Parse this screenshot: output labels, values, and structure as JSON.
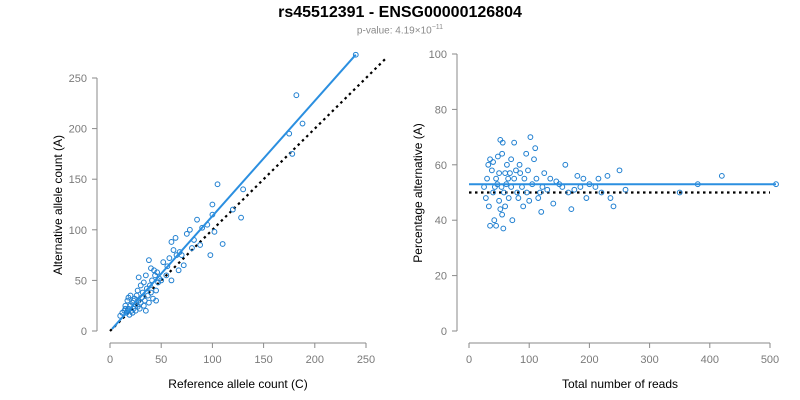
{
  "title": "rs45512391 - ENSG00000126804",
  "subtitle": {
    "prefix": "p-value: 4.19×10",
    "exponent": "−11"
  },
  "colors": {
    "points": "#1f7fd0",
    "fit_line": "#2b8fe0",
    "reference_line": "#000000",
    "axis": "#8a8a8a"
  },
  "chart_data": [
    {
      "type": "scatter",
      "title": "",
      "xlabel": "Reference allele count (C)",
      "ylabel": "Alternative allele count (A)",
      "xlim": [
        0,
        250
      ],
      "ylim": [
        0,
        250
      ],
      "xticks": [
        0,
        50,
        100,
        150,
        200,
        250
      ],
      "yticks": [
        0,
        50,
        100,
        150,
        200,
        250
      ],
      "fit_line": {
        "from": [
          2,
          2
        ],
        "to": [
          240,
          273
        ]
      },
      "reference_line": {
        "from": [
          0,
          0
        ],
        "to": [
          270,
          270
        ]
      },
      "points": [
        [
          10,
          15
        ],
        [
          12,
          18
        ],
        [
          14,
          20
        ],
        [
          15,
          22
        ],
        [
          15,
          25
        ],
        [
          16,
          18
        ],
        [
          17,
          20
        ],
        [
          17,
          30
        ],
        [
          18,
          22
        ],
        [
          18,
          33
        ],
        [
          19,
          16
        ],
        [
          20,
          25
        ],
        [
          20,
          35
        ],
        [
          21,
          20
        ],
        [
          22,
          28
        ],
        [
          22,
          18
        ],
        [
          23,
          30
        ],
        [
          23,
          22
        ],
        [
          24,
          32
        ],
        [
          25,
          26
        ],
        [
          25,
          20
        ],
        [
          26,
          35
        ],
        [
          27,
          40
        ],
        [
          27,
          24
        ],
        [
          28,
          30
        ],
        [
          28,
          53
        ],
        [
          29,
          22
        ],
        [
          30,
          45
        ],
        [
          30,
          28
        ],
        [
          31,
          33
        ],
        [
          32,
          38
        ],
        [
          33,
          25
        ],
        [
          33,
          48
        ],
        [
          34,
          30
        ],
        [
          35,
          55
        ],
        [
          35,
          20
        ],
        [
          36,
          42
        ],
        [
          37,
          35
        ],
        [
          38,
          70
        ],
        [
          38,
          28
        ],
        [
          39,
          45
        ],
        [
          40,
          38
        ],
        [
          40,
          62
        ],
        [
          41,
          50
        ],
        [
          42,
          32
        ],
        [
          43,
          60
        ],
        [
          44,
          55
        ],
        [
          45,
          40
        ],
        [
          45,
          30
        ],
        [
          46,
          58
        ],
        [
          47,
          48
        ],
        [
          48,
          52
        ],
        [
          50,
          50
        ],
        [
          52,
          68
        ],
        [
          55,
          55
        ],
        [
          56,
          64
        ],
        [
          58,
          72
        ],
        [
          60,
          50
        ],
        [
          60,
          88
        ],
        [
          62,
          80
        ],
        [
          64,
          92
        ],
        [
          65,
          75
        ],
        [
          67,
          60
        ],
        [
          68,
          78
        ],
        [
          70,
          75
        ],
        [
          72,
          65
        ],
        [
          75,
          96
        ],
        [
          78,
          100
        ],
        [
          80,
          82
        ],
        [
          82,
          90
        ],
        [
          85,
          110
        ],
        [
          88,
          85
        ],
        [
          90,
          102
        ],
        [
          95,
          105
        ],
        [
          98,
          75
        ],
        [
          100,
          125
        ],
        [
          100,
          115
        ],
        [
          102,
          98
        ],
        [
          105,
          145
        ],
        [
          110,
          86
        ],
        [
          120,
          120
        ],
        [
          128,
          112
        ],
        [
          130,
          140
        ],
        [
          175,
          195
        ],
        [
          178,
          175
        ],
        [
          182,
          233
        ],
        [
          188,
          205
        ],
        [
          240,
          273
        ]
      ]
    },
    {
      "type": "scatter",
      "title": "",
      "xlabel": "Total number of reads",
      "ylabel": "Percentage alternative (A)",
      "xlim": [
        0,
        500
      ],
      "ylim": [
        0,
        100
      ],
      "xticks": [
        0,
        100,
        200,
        300,
        400,
        500
      ],
      "yticks": [
        0,
        20,
        40,
        60,
        80,
        100
      ],
      "fit_line": {
        "from": [
          0,
          53
        ],
        "to": [
          510,
          53
        ]
      },
      "reference_line": {
        "from": [
          0,
          50
        ],
        "to": [
          500,
          50
        ]
      },
      "points": [
        [
          25,
          52
        ],
        [
          28,
          48
        ],
        [
          30,
          55
        ],
        [
          32,
          60
        ],
        [
          33,
          45
        ],
        [
          35,
          62
        ],
        [
          35,
          38
        ],
        [
          38,
          58
        ],
        [
          40,
          50
        ],
        [
          40,
          61
        ],
        [
          42,
          40
        ],
        [
          43,
          52
        ],
        [
          45,
          55
        ],
        [
          45,
          38
        ],
        [
          47,
          53
        ],
        [
          48,
          63
        ],
        [
          50,
          57
        ],
        [
          50,
          47
        ],
        [
          52,
          69
        ],
        [
          52,
          44
        ],
        [
          54,
          52
        ],
        [
          55,
          42
        ],
        [
          55,
          64
        ],
        [
          56,
          68
        ],
        [
          57,
          37
        ],
        [
          58,
          50
        ],
        [
          60,
          57
        ],
        [
          60,
          45
        ],
        [
          62,
          53
        ],
        [
          63,
          60
        ],
        [
          65,
          55
        ],
        [
          66,
          48
        ],
        [
          68,
          57
        ],
        [
          70,
          62
        ],
        [
          70,
          52
        ],
        [
          72,
          40
        ],
        [
          75,
          68
        ],
        [
          75,
          55
        ],
        [
          78,
          58
        ],
        [
          80,
          50
        ],
        [
          82,
          48
        ],
        [
          84,
          60
        ],
        [
          85,
          57
        ],
        [
          88,
          52
        ],
        [
          90,
          45
        ],
        [
          92,
          55
        ],
        [
          95,
          64
        ],
        [
          96,
          50
        ],
        [
          98,
          58
        ],
        [
          100,
          47
        ],
        [
          102,
          70
        ],
        [
          105,
          53
        ],
        [
          108,
          62
        ],
        [
          110,
          66
        ],
        [
          112,
          55
        ],
        [
          115,
          48
        ],
        [
          118,
          50
        ],
        [
          120,
          43
        ],
        [
          122,
          52
        ],
        [
          125,
          57
        ],
        [
          130,
          51
        ],
        [
          135,
          55
        ],
        [
          140,
          46
        ],
        [
          145,
          54
        ],
        [
          150,
          53
        ],
        [
          155,
          52
        ],
        [
          160,
          60
        ],
        [
          165,
          50
        ],
        [
          170,
          44
        ],
        [
          175,
          51
        ],
        [
          180,
          56
        ],
        [
          185,
          52
        ],
        [
          190,
          55
        ],
        [
          195,
          48
        ],
        [
          200,
          53
        ],
        [
          210,
          52
        ],
        [
          215,
          55
        ],
        [
          220,
          50
        ],
        [
          230,
          56
        ],
        [
          235,
          48
        ],
        [
          240,
          45
        ],
        [
          250,
          58
        ],
        [
          260,
          51
        ],
        [
          350,
          50
        ],
        [
          380,
          53
        ],
        [
          420,
          56
        ],
        [
          510,
          53
        ]
      ]
    }
  ]
}
